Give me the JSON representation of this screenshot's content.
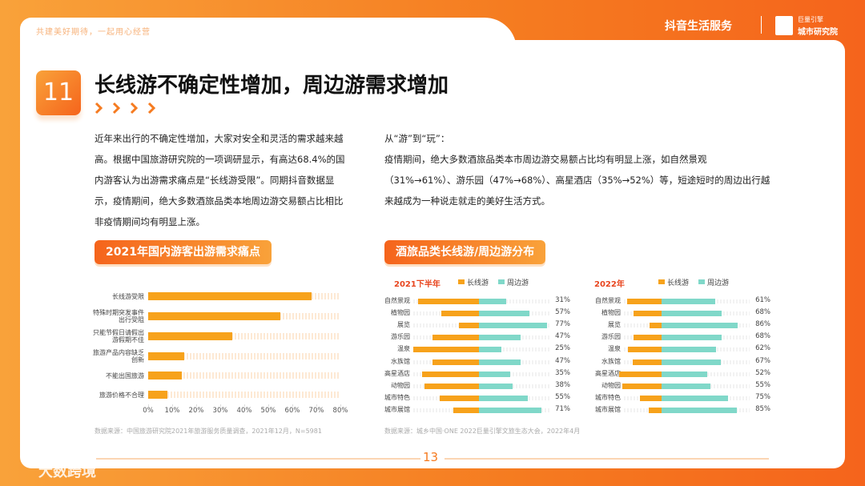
{
  "header": {
    "tagline": "共建美好期待，一起用心经营",
    "brand": "抖音生活服务",
    "partner_top": "巨量引擎",
    "partner_bottom": "城市研究院"
  },
  "section_number": "11",
  "title": "长线游不确定性增加，周边游需求增加",
  "left_text": "近年来出行的不确定性增加，大家对安全和灵活的需求越来越高。根据中国旅游研究院的一项调研显示，有高达68.4%的国内游客认为出游需求痛点是“长线游受限”。同期抖音数据显示，疫情期间，绝大多数酒旅品类本地周边游交易额占比相比非疫情期间均有明显上涨。",
  "right_heading": "从“游”到“玩”：",
  "right_text": "疫情期间，绝大多数酒旅品类本市周边游交易额占比均有明显上涨，如自然景观（31%→61%）、游乐园（47%→68%）、高星酒店（35%→52%）等，短途短时的周边出行越来越成为一种说走就走的美好生活方式。",
  "chart_data": [
    {
      "type": "hbar",
      "title": "2021年国内游客出游需求痛点",
      "categories": [
        "长线游受限",
        "特殊时期突发事件出行受阻",
        "只能节假日请假出游假期不佳",
        "旅游产品内容缺乏创新",
        "不能出国旅游",
        "旅游价格不合理"
      ],
      "values": [
        68,
        55,
        35,
        15,
        14,
        8
      ],
      "color": "#f7a21b",
      "xlim": [
        0,
        80
      ],
      "xticks": [
        {
          "value": 0,
          "label": "0%"
        },
        {
          "value": 10,
          "label": "10%"
        },
        {
          "value": 20,
          "label": "20%"
        },
        {
          "value": 30,
          "label": "30%"
        },
        {
          "value": 40,
          "label": "40%"
        },
        {
          "value": 50,
          "label": "50%"
        },
        {
          "value": 60,
          "label": "60%"
        },
        {
          "value": 70,
          "label": "70%"
        },
        {
          "value": 80,
          "label": "80%"
        }
      ],
      "source": "数据来源：中国旅游研究院2021年旅游服务质量调查，2021年12月，N=5981"
    },
    {
      "type": "diverging-bar",
      "title": "酒旅品类长线游/周边游分布",
      "panels": [
        {
          "subtitle": "2021下半年",
          "categories": [
            "自然景观",
            "植物园",
            "展览",
            "游乐园",
            "温泉",
            "水族馆",
            "高星酒店",
            "动物园",
            "城市特色",
            "城市展馆"
          ],
          "series": [
            {
              "name": "长线游",
              "color": "#f7a21b",
              "values": [
                69,
                43,
                23,
                53,
                75,
                53,
                65,
                62,
                45,
                29
              ]
            },
            {
              "name": "周边游",
              "color": "#80d8c9",
              "values": [
                31,
                57,
                77,
                47,
                25,
                47,
                35,
                38,
                55,
                71
              ],
              "value_labels": [
                "31%",
                "57%",
                "77%",
                "47%",
                "25%",
                "47%",
                "35%",
                "38%",
                "55%",
                "71%"
              ]
            }
          ]
        },
        {
          "subtitle": "2022年",
          "categories": [
            "自然景观",
            "植物园",
            "展览",
            "游乐园",
            "温泉",
            "水族馆",
            "高星酒店",
            "动物园",
            "城市特色",
            "城市展馆"
          ],
          "series": [
            {
              "name": "长线游",
              "color": "#f7a21b",
              "values": [
                39,
                32,
                14,
                32,
                38,
                33,
                48,
                45,
                25,
                15
              ]
            },
            {
              "name": "周边游",
              "color": "#80d8c9",
              "values": [
                61,
                68,
                86,
                68,
                62,
                67,
                52,
                55,
                75,
                85
              ],
              "value_labels": [
                "61%",
                "68%",
                "86%",
                "68%",
                "62%",
                "67%",
                "52%",
                "55%",
                "75%",
                "85%"
              ]
            }
          ]
        }
      ],
      "source": "数据来源：城乡中国·ONE 2022巨量引擎文旅生态大会，2022年4月"
    }
  ],
  "page_number": "13",
  "watermark": "大数跨境"
}
